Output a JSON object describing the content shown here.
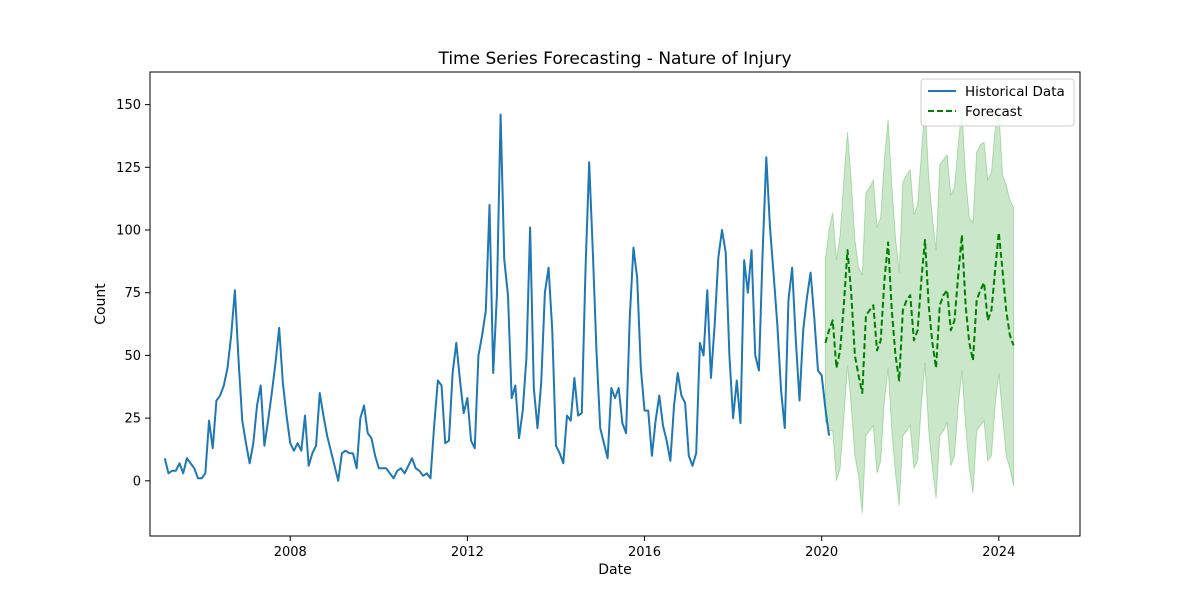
{
  "chart_data": {
    "type": "line",
    "title": "Time Series Forecasting - Nature of Injury",
    "xlabel": "Date",
    "ylabel": "Count",
    "x_ticks": [
      "2008",
      "2012",
      "2016",
      "2020",
      "2024"
    ],
    "y_ticks": [
      0,
      25,
      50,
      75,
      100,
      125,
      150
    ],
    "xlim": [
      "2004-11",
      "2025-11"
    ],
    "ylim": [
      -22,
      163
    ],
    "legend": {
      "position": "top-right",
      "entries": [
        "Historical Data",
        "Forecast"
      ]
    },
    "colors": {
      "historical": "#1f77b4",
      "forecast": "#008000",
      "interval": "#2ca02c"
    },
    "series": [
      {
        "name": "Historical Data",
        "start": "2005-03",
        "frequency": "monthly",
        "values": [
          9,
          3,
          4,
          4,
          7,
          3,
          9,
          7,
          5,
          1,
          1,
          3,
          24,
          13,
          32,
          34,
          38,
          45,
          58,
          76,
          48,
          24,
          15,
          7,
          15,
          30,
          38,
          14,
          24,
          35,
          47,
          61,
          39,
          26,
          15,
          12,
          15,
          12,
          26,
          6,
          11,
          14,
          35,
          26,
          18,
          12,
          6,
          0,
          11,
          12,
          11,
          11,
          5,
          25,
          30,
          19,
          17,
          10,
          5,
          5,
          5,
          3,
          1,
          4,
          5,
          3,
          6,
          9,
          5,
          4,
          2,
          3,
          1,
          22,
          40,
          38,
          15,
          16,
          43,
          55,
          40,
          27,
          33,
          16,
          13,
          50,
          58,
          68,
          110,
          43,
          74,
          146,
          88,
          74,
          33,
          38,
          17,
          28,
          49,
          101,
          37,
          21,
          39,
          75,
          85,
          60,
          14,
          11,
          7,
          26,
          24,
          41,
          26,
          27,
          84,
          127,
          91,
          51,
          21,
          15,
          9,
          37,
          33,
          37,
          23,
          19,
          65,
          93,
          81,
          45,
          28,
          28,
          10,
          24,
          34,
          22,
          16,
          8,
          30,
          43,
          34,
          31,
          10,
          6,
          11,
          55,
          50,
          76,
          41,
          62,
          89,
          100,
          91,
          50,
          25,
          40,
          23,
          88,
          75,
          92,
          50,
          44,
          91,
          129,
          101,
          82,
          62,
          36,
          21,
          72,
          85,
          56,
          32,
          60,
          73,
          83,
          65,
          44,
          42,
          29,
          18
        ]
      },
      {
        "name": "Forecast",
        "start": "2020-02",
        "frequency": "monthly",
        "values": [
          55,
          60,
          64,
          45,
          52,
          70,
          92,
          75,
          50,
          42,
          35,
          66,
          68,
          70,
          52,
          56,
          80,
          95,
          68,
          50,
          40,
          68,
          72,
          74,
          56,
          60,
          80,
          96,
          70,
          55,
          45,
          70,
          74,
          76,
          60,
          64,
          82,
          98,
          70,
          55,
          48,
          72,
          76,
          79,
          64,
          68,
          84,
          99,
          84,
          68,
          58,
          54
        ],
        "lower": [
          24,
          20,
          20,
          0,
          5,
          25,
          46,
          30,
          10,
          2,
          -13,
          18,
          20,
          22,
          3,
          8,
          32,
          45,
          20,
          3,
          -10,
          18,
          20,
          22,
          5,
          8,
          30,
          47,
          20,
          5,
          -7,
          18,
          20,
          23,
          6,
          10,
          30,
          44,
          22,
          5,
          -5,
          20,
          22,
          24,
          8,
          10,
          30,
          43,
          26,
          10,
          5,
          -2
        ],
        "upper": [
          88,
          100,
          107,
          88,
          98,
          120,
          139,
          120,
          96,
          85,
          82,
          115,
          117,
          120,
          101,
          105,
          128,
          144,
          118,
          97,
          83,
          119,
          122,
          124,
          106,
          110,
          130,
          150,
          121,
          105,
          92,
          126,
          128,
          130,
          114,
          117,
          134,
          148,
          121,
          105,
          103,
          131,
          134,
          135,
          120,
          123,
          140,
          148,
          122,
          118,
          112,
          109
        ]
      }
    ]
  }
}
